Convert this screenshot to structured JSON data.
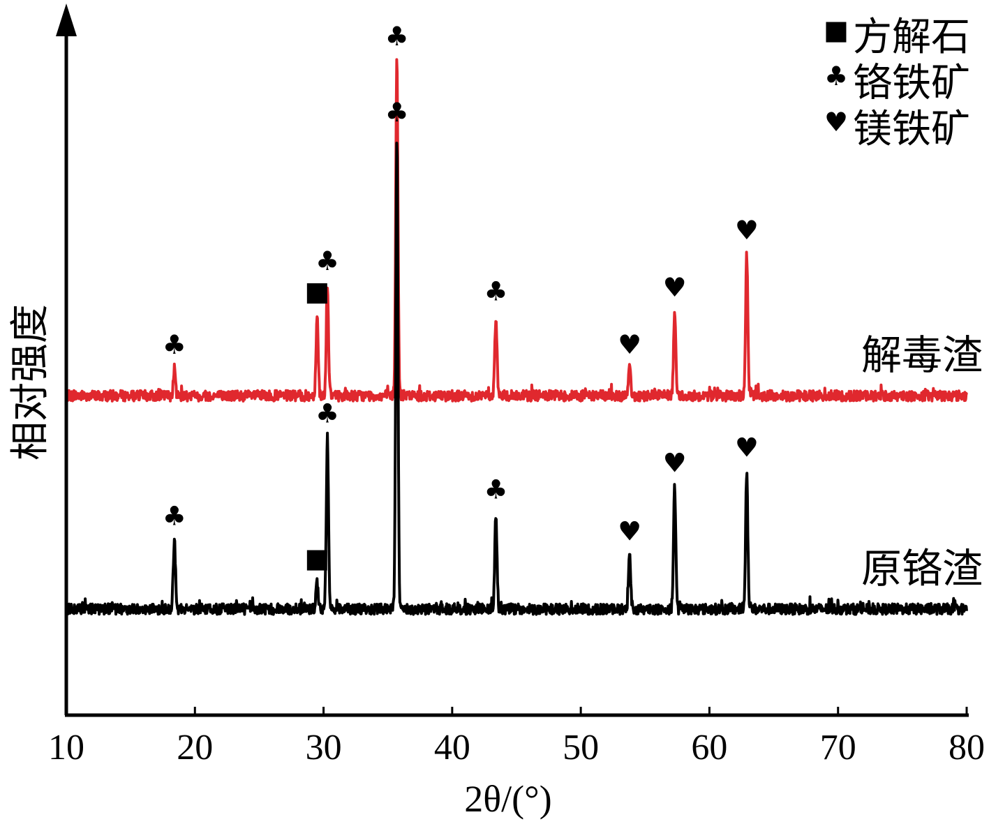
{
  "chart_data": {
    "type": "line",
    "xlabel": "2θ/(°)",
    "ylabel": "相对强度",
    "xlim": [
      10,
      80
    ],
    "x_ticks": [
      10,
      20,
      30,
      40,
      50,
      60,
      70,
      80
    ],
    "grid": false,
    "legend_position": "top-right",
    "legend": [
      {
        "symbol": "■",
        "label": "方解石"
      },
      {
        "symbol": "♣",
        "label": "铬铁矿"
      },
      {
        "symbol": "♥",
        "label": "镁铁矿"
      }
    ],
    "series": [
      {
        "name": "解毒渣",
        "color": "#e0282e",
        "baseline": 0.56,
        "peaks": [
          {
            "x": 18.4,
            "intensity": 0.07,
            "phase": "♣"
          },
          {
            "x": 29.5,
            "intensity": 0.21,
            "phase": "■"
          },
          {
            "x": 30.3,
            "intensity": 0.29,
            "phase": "♣"
          },
          {
            "x": 35.7,
            "intensity": 0.88,
            "phase": "♣"
          },
          {
            "x": 43.4,
            "intensity": 0.21,
            "phase": "♣"
          },
          {
            "x": 53.8,
            "intensity": 0.07,
            "phase": "♥"
          },
          {
            "x": 57.3,
            "intensity": 0.22,
            "phase": "♥"
          },
          {
            "x": 62.9,
            "intensity": 0.37,
            "phase": "♥"
          }
        ]
      },
      {
        "name": "原铬渣",
        "color": "#000000",
        "baseline": 0.0,
        "peaks": [
          {
            "x": 18.4,
            "intensity": 0.18,
            "phase": "♣"
          },
          {
            "x": 29.5,
            "intensity": 0.07,
            "phase": "■"
          },
          {
            "x": 30.3,
            "intensity": 0.45,
            "phase": "♣"
          },
          {
            "x": 35.7,
            "intensity": 1.24,
            "phase": "♣"
          },
          {
            "x": 43.4,
            "intensity": 0.25,
            "phase": "♣"
          },
          {
            "x": 53.8,
            "intensity": 0.14,
            "phase": "♥"
          },
          {
            "x": 57.3,
            "intensity": 0.32,
            "phase": "♥"
          },
          {
            "x": 62.9,
            "intensity": 0.36,
            "phase": "♥"
          }
        ]
      }
    ]
  }
}
